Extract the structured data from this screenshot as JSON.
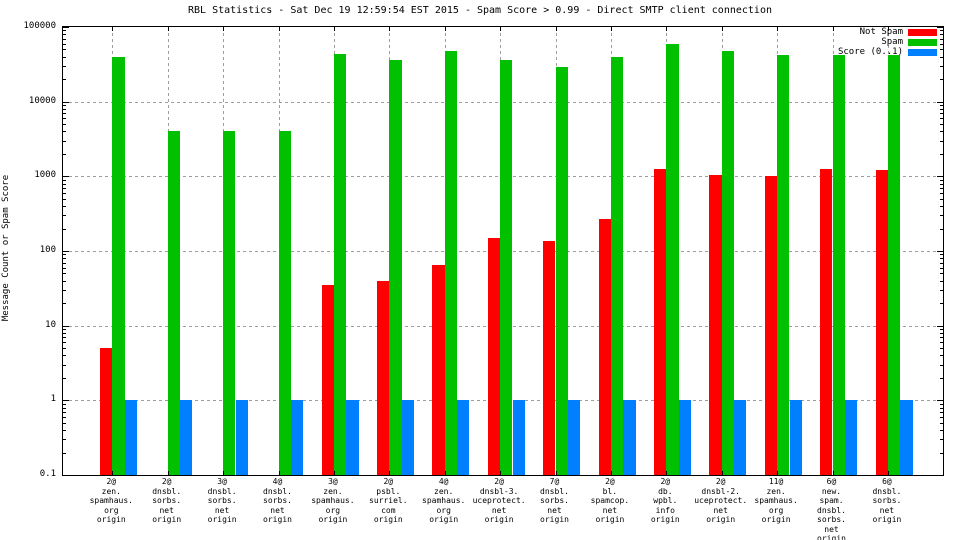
{
  "chart_data": {
    "type": "bar",
    "title": "RBL Statistics - Sat Dec 19 12:59:54 EST 2015 - Spam Score > 0.99 - Direct SMTP client connection",
    "ylabel": "Message Count or Spam Score",
    "yscale": "log",
    "ylim": [
      0.1,
      100000
    ],
    "ytick_labels": [
      "100000",
      "10000",
      "1000",
      "100",
      "10",
      "1",
      "0.1"
    ],
    "grid": true,
    "legend_position": "top-right-inside",
    "background_color": "#ffffff",
    "grid_color": "#9e9e9e",
    "categories": [
      [
        "2@",
        "zen.",
        "spamhaus.",
        "org",
        "origin"
      ],
      [
        "2@",
        "dnsbl.",
        "sorbs.",
        "net",
        "origin"
      ],
      [
        "3@",
        "dnsbl.",
        "sorbs.",
        "net",
        "origin"
      ],
      [
        "4@",
        "dnsbl.",
        "sorbs.",
        "net",
        "origin"
      ],
      [
        "3@",
        "zen.",
        "spamhaus.",
        "org",
        "origin"
      ],
      [
        "2@",
        "psbl.",
        "surriel.",
        "com",
        "origin"
      ],
      [
        "4@",
        "zen.",
        "spamhaus.",
        "org",
        "origin"
      ],
      [
        "2@",
        "dnsbl-3.",
        "uceprotect.",
        "net",
        "origin"
      ],
      [
        "7@",
        "dnsbl.",
        "sorbs.",
        "net",
        "origin"
      ],
      [
        "2@",
        "bl.",
        "spamcop.",
        "net",
        "origin"
      ],
      [
        "2@",
        "db.",
        "wpbl.",
        "info",
        "origin"
      ],
      [
        "2@",
        "dnsbl-2.",
        "uceprotect.",
        "net",
        "origin"
      ],
      [
        "11@",
        "zen.",
        "spamhaus.",
        "org",
        "origin"
      ],
      [
        "6@",
        "new.",
        "spam.",
        "dnsbl.",
        "sorbs.",
        "net",
        "origin"
      ],
      [
        "6@",
        "dnsbl.",
        "sorbs.",
        "net",
        "origin"
      ]
    ],
    "series": [
      {
        "name": "Not Spam",
        "color": "#ff0000",
        "values": [
          5,
          0,
          0,
          0,
          35,
          40,
          65,
          150,
          135,
          270,
          1250,
          1050,
          1000,
          1250,
          1200
        ]
      },
      {
        "name": "Spam",
        "color": "#00c000",
        "values": [
          40000,
          4000,
          4000,
          4000,
          43000,
          36000,
          48000,
          36000,
          29000,
          40000,
          60000,
          47000,
          42000,
          42000,
          42000
        ]
      },
      {
        "name": "Score (0..1)",
        "color": "#0080ff",
        "values": [
          1,
          1,
          1,
          1,
          1,
          1,
          1,
          1,
          1,
          1,
          1,
          1,
          1,
          1,
          1
        ]
      }
    ]
  }
}
